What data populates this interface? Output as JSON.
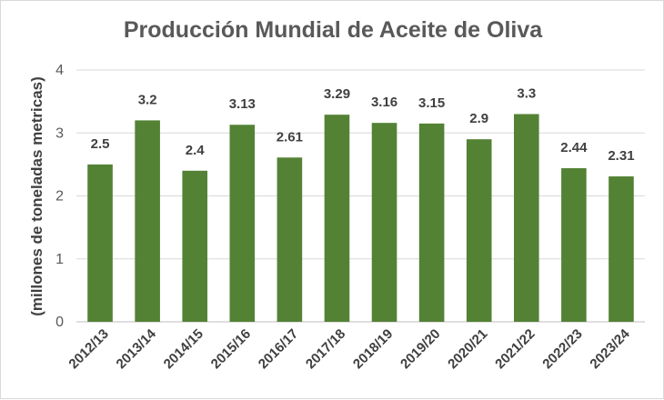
{
  "chart_data": {
    "type": "bar",
    "title": "Producción Mundial de Aceite de Oliva",
    "xlabel": "",
    "ylabel": "(millones de toneladas metricas)",
    "ylim": [
      0,
      4
    ],
    "yticks": [
      "0",
      "1",
      "2",
      "3",
      "4"
    ],
    "grid": true,
    "legend": "none",
    "bar_color": "#548235",
    "categories": [
      "2012/13",
      "2013/14",
      "2014/15",
      "2015/16",
      "2016/17",
      "2017/18",
      "2018/19",
      "2019/20",
      "2020/21",
      "2021/22",
      "2022/23",
      "2023/24"
    ],
    "values": [
      2.5,
      3.2,
      2.4,
      3.13,
      2.61,
      3.29,
      3.16,
      3.15,
      2.9,
      3.3,
      2.44,
      2.31
    ],
    "data_labels": [
      "2.5",
      "3.2",
      "2.4",
      "3.13",
      "2.61",
      "3.29",
      "3.16",
      "3.15",
      "2.9",
      "3.3",
      "2.44",
      "2.31"
    ]
  }
}
